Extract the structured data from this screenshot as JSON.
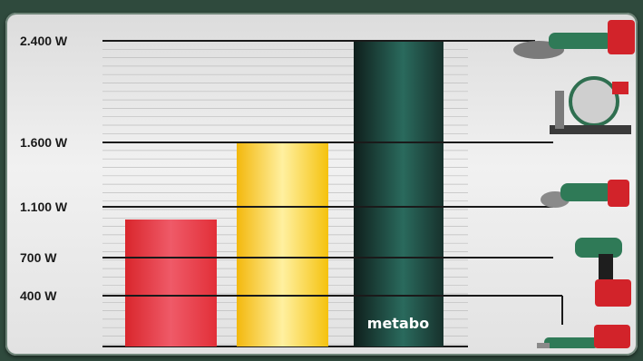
{
  "chart_data": {
    "type": "bar",
    "categories": [
      "",
      "",
      ""
    ],
    "values": [
      1000,
      1600,
      2400
    ],
    "colors": [
      "#e63d45",
      "#f7cc1e",
      "#1f4a42"
    ],
    "yticks": [
      400,
      700,
      1100,
      1600,
      2400
    ],
    "ytick_labels": [
      "400 W",
      "700 W",
      "1.100 W",
      "1.600 W",
      "2.400 W"
    ],
    "ylim": [
      0,
      2400
    ],
    "grid": true,
    "brand_label": "metabo",
    "tool_icons": [
      "angle-grinder-icon",
      "miter-saw-icon",
      "compact-grinder-icon",
      "drill-driver-icon",
      "multi-tool-icon"
    ]
  }
}
